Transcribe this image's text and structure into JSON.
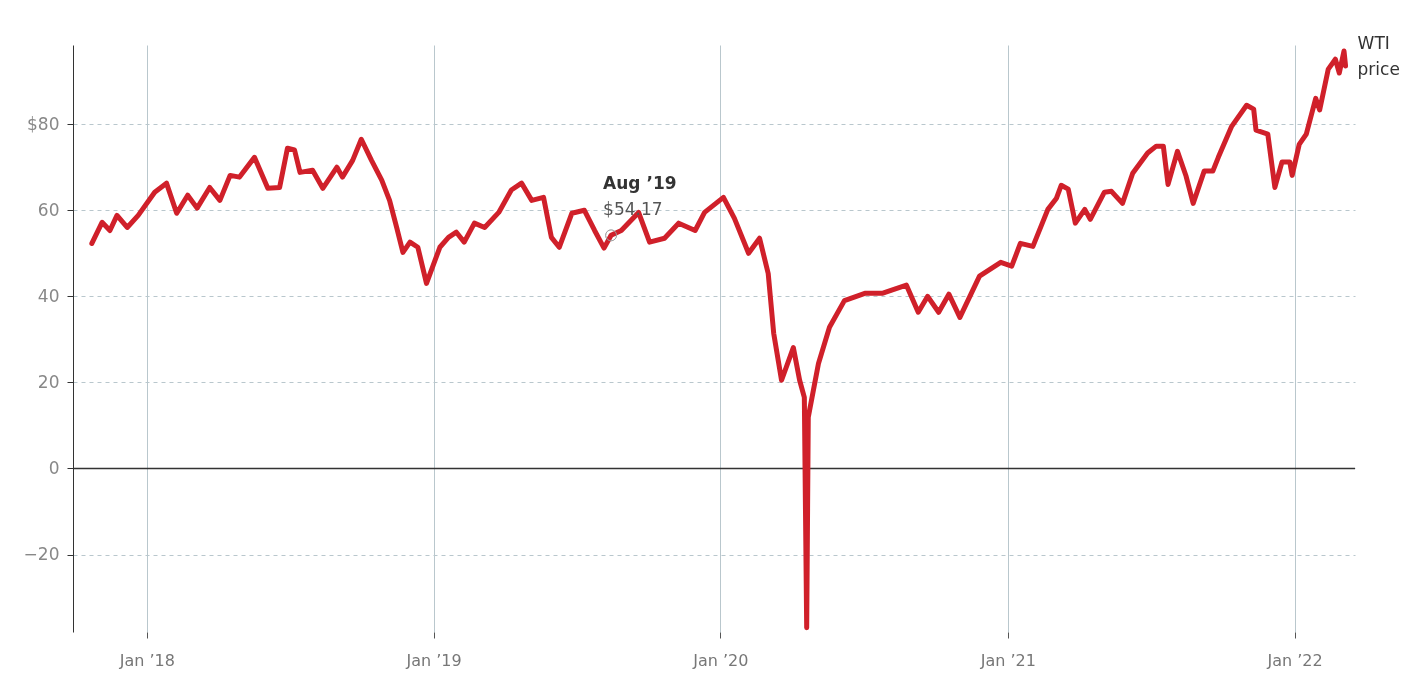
{
  "chart_data": {
    "type": "line",
    "x": [
      "2017-10-23",
      "2017-11-05",
      "2017-11-15",
      "2017-11-24",
      "2017-12-07",
      "2017-12-21",
      "2018-01-11",
      "2018-01-26",
      "2018-02-08",
      "2018-02-22",
      "2018-03-06",
      "2018-03-22",
      "2018-04-04",
      "2018-04-17",
      "2018-04-29",
      "2018-05-18",
      "2018-06-04",
      "2018-06-19",
      "2018-06-29",
      "2018-07-08",
      "2018-07-15",
      "2018-07-31",
      "2018-08-13",
      "2018-08-31",
      "2018-09-07",
      "2018-09-20",
      "2018-10-01",
      "2018-10-14",
      "2018-10-27",
      "2018-11-06",
      "2018-11-15",
      "2018-11-23",
      "2018-12-02",
      "2018-12-12",
      "2018-12-23",
      "2019-01-09",
      "2019-01-20",
      "2019-01-30",
      "2019-02-09",
      "2019-02-22",
      "2019-03-07",
      "2019-03-25",
      "2019-04-10",
      "2019-04-23",
      "2019-05-06",
      "2019-05-21",
      "2019-05-31",
      "2019-06-10",
      "2019-06-26",
      "2019-07-12",
      "2019-07-25",
      "2019-08-06",
      "2019-08-15",
      "2019-08-28",
      "2019-09-19",
      "2019-10-03",
      "2019-10-22",
      "2019-11-09",
      "2019-11-30",
      "2019-12-12",
      "2020-01-05",
      "2020-01-19",
      "2020-02-06",
      "2020-02-20",
      "2020-03-02",
      "2020-03-09",
      "2020-03-19",
      "2020-04-03",
      "2020-04-11",
      "2020-04-17",
      "2020-04-20",
      "2020-04-22",
      "2020-05-05",
      "2020-05-19",
      "2020-06-07",
      "2020-07-03",
      "2020-07-25",
      "2020-08-25",
      "2020-09-09",
      "2020-09-21",
      "2020-10-05",
      "2020-10-18",
      "2020-11-01",
      "2020-11-26",
      "2020-12-23",
      "2021-01-06",
      "2021-01-17",
      "2021-02-02",
      "2021-02-21",
      "2021-03-04",
      "2021-03-10",
      "2021-03-19",
      "2021-03-28",
      "2021-04-09",
      "2021-04-16",
      "2021-05-04",
      "2021-05-13",
      "2021-05-27",
      "2021-06-09",
      "2021-06-28",
      "2021-07-09",
      "2021-07-18",
      "2021-07-24",
      "2021-08-05",
      "2021-08-16",
      "2021-08-25",
      "2021-09-08",
      "2021-09-19",
      "2021-09-26",
      "2021-10-13",
      "2021-11-01",
      "2021-11-10",
      "2021-11-13",
      "2021-11-28",
      "2021-12-07",
      "2021-12-16",
      "2021-12-26",
      "2021-12-29",
      "2022-01-07",
      "2022-01-16",
      "2022-01-28",
      "2022-02-02",
      "2022-02-13",
      "2022-02-22",
      "2022-02-27",
      "2022-03-05",
      "2022-03-07"
    ],
    "series": [
      {
        "name": "WTI price",
        "color": "#d0202a",
        "values": [
          52.3,
          57.2,
          55.3,
          58.8,
          56,
          58.8,
          64.2,
          66.3,
          59.3,
          63.5,
          60.5,
          65.3,
          62.3,
          68.1,
          67.7,
          72.3,
          65.1,
          65.3,
          74.4,
          74,
          68.8,
          69.3,
          65.1,
          70,
          67.7,
          71.6,
          76.5,
          71.6,
          67,
          62.3,
          56,
          50.2,
          52.6,
          51.4,
          43,
          51.4,
          53.7,
          54.9,
          52.6,
          57,
          56,
          59.5,
          64.7,
          66.3,
          62.3,
          63,
          53.7,
          51.4,
          59.3,
          60,
          55.3,
          51.2,
          54.2,
          55.3,
          59.5,
          52.6,
          53.5,
          57,
          55.3,
          59.5,
          63,
          58.1,
          50,
          53.5,
          45.3,
          31.4,
          20.5,
          28.1,
          20.5,
          16.5,
          -37,
          11.9,
          24.4,
          32.8,
          39,
          40.7,
          40.7,
          42.6,
          36.3,
          40,
          36.3,
          40.5,
          35.1,
          44.7,
          47.9,
          47,
          52.3,
          51.6,
          60.2,
          62.8,
          65.8,
          64.9,
          57,
          60.2,
          57.9,
          64.2,
          64.4,
          61.6,
          68.6,
          73.3,
          74.9,
          74.9,
          66,
          73.7,
          67.9,
          61.6,
          69.1,
          69.1,
          72.3,
          79.5,
          84.4,
          83.5,
          78.6,
          77.7,
          65.3,
          71.2,
          71.2,
          68.1,
          75.3,
          77.7,
          86,
          83.3,
          92.8,
          95.1,
          91.9,
          97,
          93.5
        ]
      }
    ],
    "xlim": [
      "2017-09-29",
      "2022-03-19"
    ],
    "xticks": [
      {
        "value": "2018-01-01",
        "label": "Jan ’18"
      },
      {
        "value": "2019-01-01",
        "label": "Jan ’19"
      },
      {
        "value": "2020-01-01",
        "label": "Jan ’20"
      },
      {
        "value": "2021-01-01",
        "label": "Jan ’21"
      },
      {
        "value": "2022-01-01",
        "label": "Jan ’22"
      }
    ],
    "ylim": [
      -38,
      98.4
    ],
    "yticks": [
      -20,
      0,
      20,
      40,
      60,
      {
        "value": 80,
        "label": "$80"
      }
    ],
    "grid": true,
    "ref_lines": [
      {
        "axis": "y",
        "value": 0,
        "color": "#333333"
      }
    ],
    "annotations": [
      {
        "text": "Aug ’19",
        "x": "2019-08-15",
        "y": 54.17
      },
      {
        "text": "$54.17",
        "x": "2019-08-15",
        "y": 54.17
      }
    ]
  }
}
